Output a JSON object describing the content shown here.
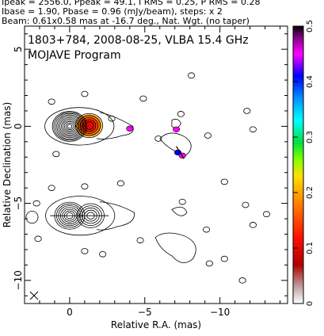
{
  "header": {
    "line1": "Ipeak = 2556.0, Ppeak = 49.1, I RMS = 0.25, P RMS = 0.28",
    "line2": "Ibase = 1.90, Pbase = 0.96 (mJy/beam), steps: x 2",
    "line3": "Beam: 0.61x0.58 mas at -16.7 deg., Nat. Wgt. (no taper)"
  },
  "chart_data": {
    "type": "contour-map",
    "title": "1803+784, 2008-08-25, VLBA 15.4 GHz",
    "subtitle": "MOJAVE Program",
    "xlabel": "Relative R.A. (mas)",
    "ylabel": "Relative Declination (mas)",
    "xlim": [
      3.0,
      -14.5
    ],
    "ylim": [
      -11.5,
      6.5
    ],
    "x_ticks": [
      0,
      -5,
      -10
    ],
    "y_ticks": [
      5,
      0,
      -5,
      -10
    ],
    "colorbar": {
      "min": 0,
      "max": 0.5,
      "ticks": [
        0,
        0.1,
        0.2,
        0.3,
        0.4,
        0.5
      ],
      "colors": [
        "#ffffff",
        "#b00000",
        "#ff0000",
        "#ff8000",
        "#ffff00",
        "#00ff00",
        "#00ffff",
        "#0080ff",
        "#0000ff",
        "#ff00ff",
        "#000000"
      ]
    },
    "upper_core": {
      "x": 0.0,
      "y": 0.0
    },
    "upper_knot": {
      "x": -1.3,
      "y": 0.05
    },
    "lower_core": {
      "x": 0.0,
      "y": -5.8
    },
    "lower_knot": {
      "x": -1.4,
      "y": -5.8
    },
    "polarized_patches": [
      {
        "x": -4.0,
        "y": -0.15,
        "color": "#ff00ff"
      },
      {
        "x": -7.1,
        "y": -0.2,
        "color": "#ff00ff"
      },
      {
        "x": -7.2,
        "y": -1.7,
        "color": "#0000ff"
      },
      {
        "x": -7.5,
        "y": -1.9,
        "color": "#ff00ff"
      }
    ]
  },
  "colors": {
    "frame": "#000000",
    "contour": "#000000",
    "core": "#cc0000"
  }
}
